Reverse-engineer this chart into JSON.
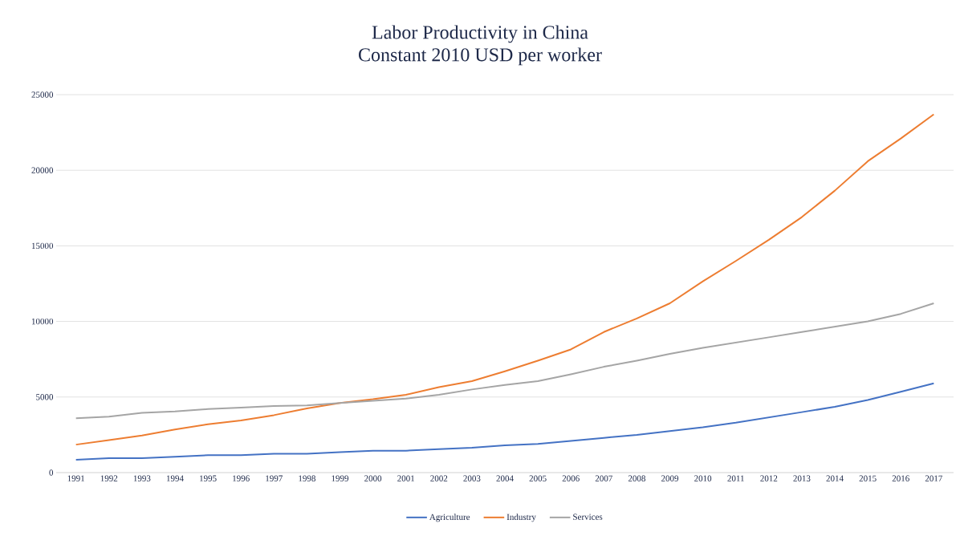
{
  "chart_data": {
    "type": "line",
    "title": "Labor Productivity in China",
    "subtitle": "Constant 2010 USD per worker",
    "categories": [
      "1991",
      "1992",
      "1993",
      "1994",
      "1995",
      "1996",
      "1997",
      "1998",
      "1999",
      "2000",
      "2001",
      "2002",
      "2003",
      "2004",
      "2005",
      "2006",
      "2007",
      "2008",
      "2009",
      "2010",
      "2011",
      "2012",
      "2013",
      "2014",
      "2015",
      "2016",
      "2017"
    ],
    "series": [
      {
        "name": "Agriculture",
        "color": "#4472c4",
        "values": [
          850,
          950,
          950,
          1050,
          1150,
          1150,
          1250,
          1250,
          1350,
          1450,
          1450,
          1550,
          1650,
          1800,
          1900,
          2100,
          2300,
          2500,
          2750,
          3000,
          3300,
          3650,
          4000,
          4350,
          4800,
          5350,
          5900
        ]
      },
      {
        "name": "Industry",
        "color": "#ed7d31",
        "values": [
          1850,
          2150,
          2450,
          2850,
          3200,
          3450,
          3800,
          4250,
          4600,
          4850,
          5150,
          5650,
          6050,
          6700,
          7400,
          8150,
          9300,
          10200,
          11200,
          12650,
          14000,
          15400,
          16900,
          18650,
          20600,
          22100,
          23700
        ]
      },
      {
        "name": "Services",
        "color": "#a5a5a5",
        "values": [
          3600,
          3700,
          3950,
          4050,
          4200,
          4300,
          4400,
          4450,
          4600,
          4750,
          4900,
          5150,
          5500,
          5800,
          6050,
          6500,
          7000,
          7400,
          7850,
          8250,
          8600,
          8950,
          9300,
          9650,
          10000,
          10500,
          11200
        ]
      }
    ],
    "ylim": [
      0,
      25000
    ],
    "yticks": [
      0,
      5000,
      10000,
      15000,
      20000,
      25000
    ],
    "grid": "y",
    "legend": "bottom",
    "marker": "none",
    "line_style": "solid"
  }
}
